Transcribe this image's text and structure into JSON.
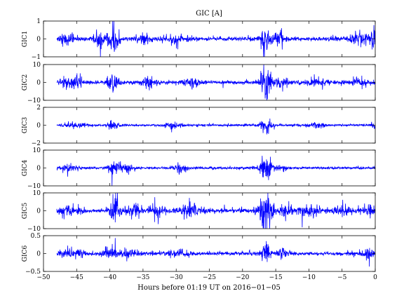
{
  "chart_data": {
    "type": "line",
    "title": "GIC [A]",
    "xlabel": "Hours before  01:19 UT on 2016−01−05",
    "xlim": [
      -50,
      0
    ],
    "data_range": [
      -48,
      0
    ],
    "xticks": [
      -50,
      -45,
      -40,
      -35,
      -30,
      -25,
      -20,
      -15,
      -10,
      -5,
      0
    ],
    "xtick_labels": [
      "−50",
      "−45",
      "−40",
      "−35",
      "−30",
      "−25",
      "−20",
      "−15",
      "−10",
      "−5",
      "0"
    ],
    "grid": false,
    "line_color": "#0000ff",
    "panels": [
      {
        "ylabel": "GIC1",
        "ylim": [
          -1,
          1
        ],
        "yticks": [
          -1,
          0,
          1
        ],
        "ytick_labels": [
          "−1",
          "0",
          "1"
        ],
        "base_amplitude": 0.07,
        "events": [
          {
            "x": -46.5,
            "amp": 0.3,
            "w": 1.2
          },
          {
            "x": -41.5,
            "amp": 0.35,
            "w": 1.0
          },
          {
            "x": -39.5,
            "amp": 0.55,
            "w": 0.8
          },
          {
            "x": -35.0,
            "amp": 0.25,
            "w": 1.0
          },
          {
            "x": -30.0,
            "amp": 0.15,
            "w": 1.5
          },
          {
            "x": -16.5,
            "amp": 0.85,
            "w": 0.6
          },
          {
            "x": -14.5,
            "amp": 0.3,
            "w": 1.0
          },
          {
            "x": -2.5,
            "amp": 0.3,
            "w": 1.5
          },
          {
            "x": -0.3,
            "amp": 0.4,
            "w": 0.4
          }
        ]
      },
      {
        "ylabel": "GIC2",
        "ylim": [
          -10,
          10
        ],
        "yticks": [
          -10,
          0,
          10
        ],
        "ytick_labels": [
          "−10",
          "0",
          "10"
        ],
        "base_amplitude": 0.6,
        "events": [
          {
            "x": -45.5,
            "amp": 3.5,
            "w": 1.5
          },
          {
            "x": -39.5,
            "amp": 4.5,
            "w": 0.8
          },
          {
            "x": -34.0,
            "amp": 2.5,
            "w": 1.0
          },
          {
            "x": -27.5,
            "amp": 2.0,
            "w": 1.2
          },
          {
            "x": -16.5,
            "amp": 8.0,
            "w": 0.9
          },
          {
            "x": -14.0,
            "amp": 2.5,
            "w": 1.0
          },
          {
            "x": -9.0,
            "amp": 1.5,
            "w": 1.5
          },
          {
            "x": -2.5,
            "amp": 1.5,
            "w": 1.5
          }
        ]
      },
      {
        "ylabel": "GIC3",
        "ylim": [
          -2,
          2
        ],
        "yticks": [
          -2,
          0,
          2
        ],
        "ytick_labels": [
          "−2",
          "0",
          "2"
        ],
        "base_amplitude": 0.07,
        "events": [
          {
            "x": -45.0,
            "amp": 0.3,
            "w": 1.5
          },
          {
            "x": -39.5,
            "amp": 0.35,
            "w": 0.8
          },
          {
            "x": -30.5,
            "amp": 0.3,
            "w": 1.2
          },
          {
            "x": -16.5,
            "amp": 0.7,
            "w": 0.8
          },
          {
            "x": -9.0,
            "amp": 0.25,
            "w": 1.5
          },
          {
            "x": -0.3,
            "amp": 0.35,
            "w": 0.4
          }
        ]
      },
      {
        "ylabel": "GIC4",
        "ylim": [
          -10,
          10
        ],
        "yticks": [
          -10,
          0,
          10
        ],
        "ytick_labels": [
          "−10",
          "0",
          "10"
        ],
        "base_amplitude": 0.4,
        "events": [
          {
            "x": -46.0,
            "amp": 1.5,
            "w": 1.5
          },
          {
            "x": -39.3,
            "amp": 4.5,
            "w": 0.8
          },
          {
            "x": -37.5,
            "amp": 2.0,
            "w": 1.0
          },
          {
            "x": -29.5,
            "amp": 1.8,
            "w": 1.2
          },
          {
            "x": -16.5,
            "amp": 6.0,
            "w": 0.9
          },
          {
            "x": -14.0,
            "amp": 1.5,
            "w": 1.0
          }
        ]
      },
      {
        "ylabel": "GIC5",
        "ylim": [
          -10,
          10
        ],
        "yticks": [
          -10,
          0,
          10
        ],
        "ytick_labels": [
          "−10",
          "0",
          "10"
        ],
        "base_amplitude": 0.7,
        "events": [
          {
            "x": -46.0,
            "amp": 2.5,
            "w": 1.5
          },
          {
            "x": -39.3,
            "amp": 8.5,
            "w": 0.7
          },
          {
            "x": -36.5,
            "amp": 3.5,
            "w": 1.0
          },
          {
            "x": -33.0,
            "amp": 3.0,
            "w": 1.0
          },
          {
            "x": -28.0,
            "amp": 2.5,
            "w": 1.5
          },
          {
            "x": -16.5,
            "amp": 9.0,
            "w": 1.0
          },
          {
            "x": -13.5,
            "amp": 3.0,
            "w": 1.2
          },
          {
            "x": -10.0,
            "amp": 2.5,
            "w": 1.5
          },
          {
            "x": -5.0,
            "amp": 2.0,
            "w": 1.5
          },
          {
            "x": -1.0,
            "amp": 2.0,
            "w": 1.0
          }
        ]
      },
      {
        "ylabel": "GIC6",
        "ylim": [
          -0.5,
          0.5
        ],
        "yticks": [
          -0.5,
          0,
          0.5
        ],
        "ytick_labels": [
          "−0.5",
          "0",
          "0.5"
        ],
        "base_amplitude": 0.03,
        "events": [
          {
            "x": -46.0,
            "amp": 0.12,
            "w": 1.5
          },
          {
            "x": -40.0,
            "amp": 0.15,
            "w": 1.0
          },
          {
            "x": -37.0,
            "amp": 0.1,
            "w": 1.2
          },
          {
            "x": -30.0,
            "amp": 0.08,
            "w": 1.5
          },
          {
            "x": -16.5,
            "amp": 0.3,
            "w": 0.6
          },
          {
            "x": -14.0,
            "amp": 0.12,
            "w": 1.0
          },
          {
            "x": -1.0,
            "amp": 0.12,
            "w": 1.0
          }
        ]
      }
    ]
  }
}
